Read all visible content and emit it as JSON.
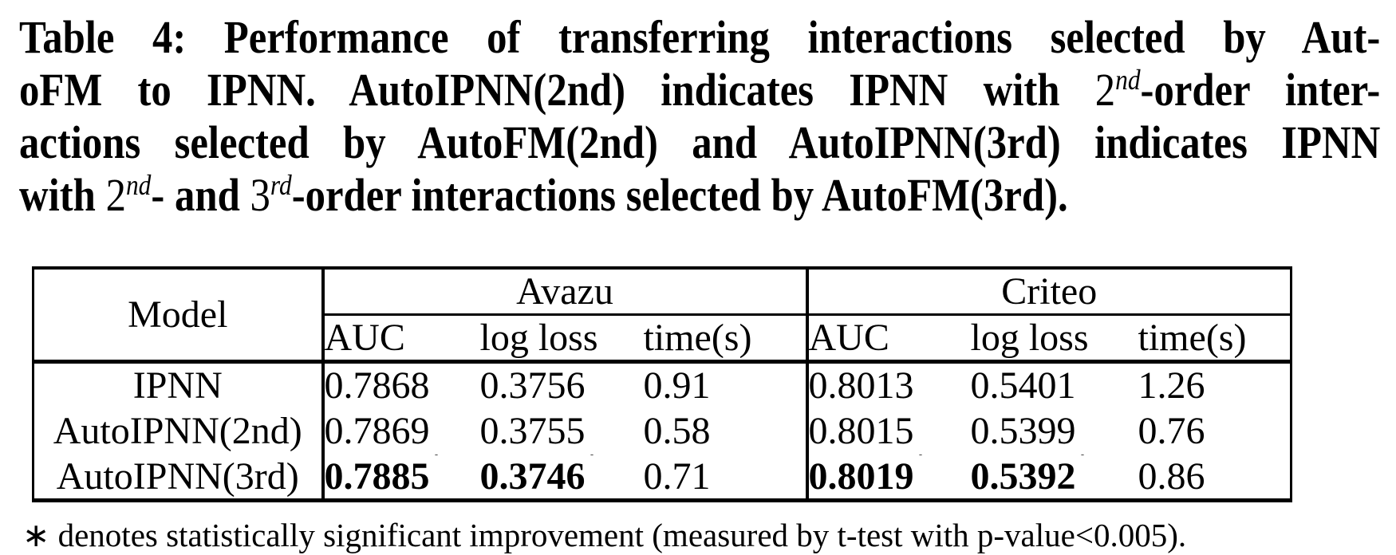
{
  "caption": {
    "line1": "Table 4: Performance of transferring interactions selected by Aut-",
    "line2_a": "oFM to IPNN. AutoIPNN(2nd) indicates IPNN with ",
    "line2_math": "2",
    "line2_sup": "nd",
    "line2_b": "-order inter-",
    "line3": "actions selected by AutoFM(2nd) and AutoIPNN(3rd) indicates IPNN",
    "line4_a": "with ",
    "line4_math1": "2",
    "line4_sup1": "nd",
    "line4_b": "- and ",
    "line4_math2": "3",
    "line4_sup2": "rd",
    "line4_c": "-order interactions selected by AutoFM(3rd)."
  },
  "table": {
    "model_header": "Model",
    "groups": [
      {
        "label": "Avazu",
        "cols": [
          "AUC",
          "log loss",
          "time(s)"
        ]
      },
      {
        "label": "Criteo",
        "cols": [
          "AUC",
          "log loss",
          "time(s)"
        ]
      }
    ],
    "rows": [
      {
        "model": "IPNN",
        "cells": [
          {
            "v": "0.7868"
          },
          {
            "v": "0.3756"
          },
          {
            "v": "0.91"
          },
          {
            "v": "0.8013"
          },
          {
            "v": "0.5401"
          },
          {
            "v": "1.26"
          }
        ]
      },
      {
        "model": "AutoIPNN(2nd)",
        "cells": [
          {
            "v": "0.7869"
          },
          {
            "v": "0.3755"
          },
          {
            "v": "0.58"
          },
          {
            "v": "0.8015"
          },
          {
            "v": "0.5399"
          },
          {
            "v": "0.76"
          }
        ]
      },
      {
        "model": "AutoIPNN(3rd)",
        "cells": [
          {
            "v": "0.7885",
            "star": "*",
            "bold": true
          },
          {
            "v": "0.3746",
            "star": "*",
            "bold": true
          },
          {
            "v": "0.71"
          },
          {
            "v": "0.8019",
            "star": "*",
            "bold": true
          },
          {
            "v": "0.5392",
            "star": "*",
            "bold": true
          },
          {
            "v": "0.86"
          }
        ]
      }
    ]
  },
  "footnote": {
    "symbol": "∗",
    "text": " denotes statistically significant improvement (measured by t-test with p-value<0.005)."
  },
  "colors": {
    "text": "#000000",
    "background": "#ffffff",
    "rule": "#000000"
  }
}
